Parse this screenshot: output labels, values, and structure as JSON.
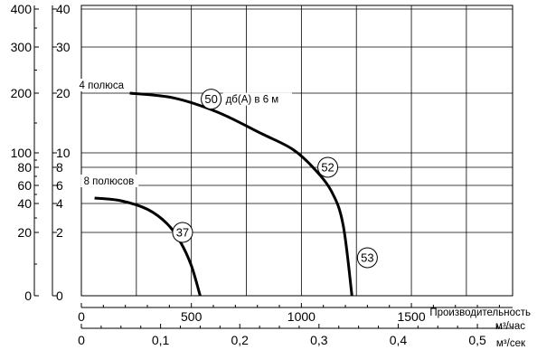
{
  "chart_data": {
    "type": "line",
    "x_axes": {
      "flow_m3h": {
        "ticks": [
          "0",
          "500",
          "1000",
          "1500"
        ],
        "values": [
          0,
          500,
          1000,
          1500
        ],
        "range": [
          0,
          1960
        ],
        "unit": "м³/час"
      },
      "flow_m3s": {
        "ticks": [
          "0",
          "0,1",
          "0,2",
          "0,3",
          "0,4",
          "0,5"
        ],
        "values": [
          0,
          0.1,
          0.2,
          0.3,
          0.4,
          0.5
        ],
        "unit": "м³/сек"
      },
      "xlabel": "Производительность"
    },
    "y_axes": {
      "outer": {
        "ticks": [
          "400",
          "300",
          "200",
          "100",
          "80",
          "60",
          "40",
          "20",
          "0"
        ],
        "values": [
          400,
          300,
          200,
          100,
          80,
          60,
          40,
          20,
          0
        ]
      },
      "inner": {
        "ticks": [
          "40",
          "30",
          "20",
          "10",
          "8",
          "6",
          "4",
          "2",
          "0"
        ],
        "values": [
          40,
          30,
          20,
          10,
          8,
          6,
          4,
          2,
          0
        ]
      }
    },
    "series": [
      {
        "name": "4 полюса",
        "points": [
          [
            220,
            20
          ],
          [
            420,
            19.2
          ],
          [
            620,
            16.8
          ],
          [
            820,
            13.2
          ],
          [
            960,
            10.6
          ],
          [
            1060,
            7.8
          ],
          [
            1140,
            5.2
          ],
          [
            1190,
            2.5
          ],
          [
            1230,
            0
          ]
        ]
      },
      {
        "name": "8 полюсов",
        "points": [
          [
            60,
            4.6
          ],
          [
            180,
            4.3
          ],
          [
            300,
            3.6
          ],
          [
            390,
            2.6
          ],
          [
            450,
            1.7
          ],
          [
            500,
            0.95
          ],
          [
            540,
            0
          ]
        ]
      }
    ],
    "annotations": [
      {
        "text": "50",
        "x": 590,
        "y": 19.0
      },
      {
        "text": "52",
        "x": 1120,
        "y": 8.0
      },
      {
        "text": "53",
        "x": 1300,
        "y": 1.2
      },
      {
        "text": "37",
        "x": 460,
        "y": 2.0
      }
    ],
    "extra_label": "дб(А) в 6 м",
    "grid": true
  }
}
